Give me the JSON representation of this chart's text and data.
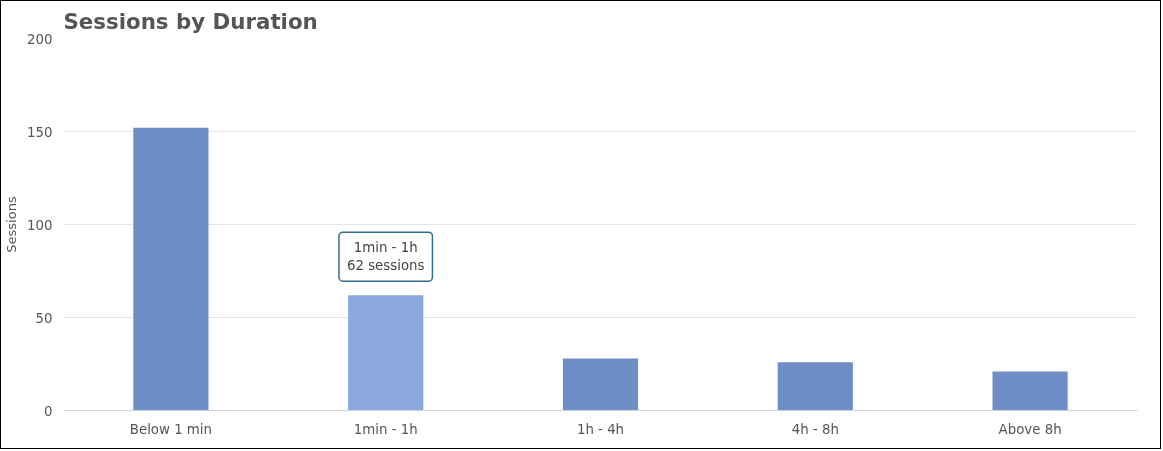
{
  "chart_data": {
    "type": "bar",
    "title": "Sessions by Duration",
    "ylabel": "Sessions",
    "categories": [
      "Below 1 min",
      "1min - 1h",
      "1h - 4h",
      "4h - 8h",
      "Above 8h"
    ],
    "values": [
      152,
      62,
      28,
      26,
      21
    ],
    "colors": [
      "#6f8ec8",
      "#8aa8de",
      "#6f8ec8",
      "#6f8ec8",
      "#6f8ec8"
    ],
    "ylim": [
      0,
      200
    ],
    "yticks": [
      0,
      50,
      100,
      150,
      200
    ],
    "grid": "y",
    "annotations": [
      {
        "text": "1min - 1h\n62 sessions",
        "x": "1min - 1h",
        "y": 62
      }
    ]
  }
}
